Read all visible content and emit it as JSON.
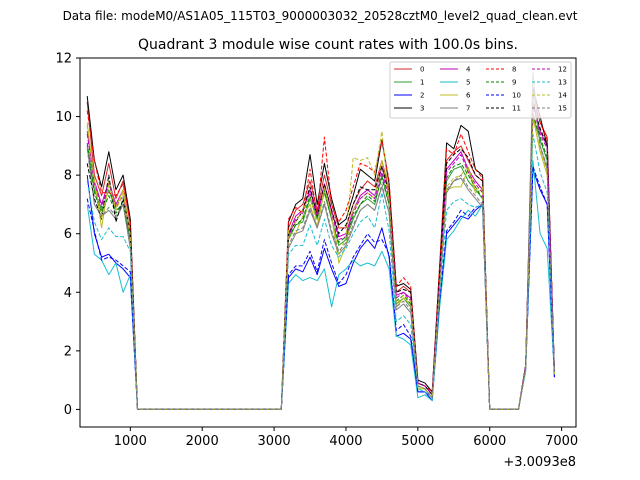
{
  "chart_data": {
    "type": "line",
    "suptitle": "Data file: modeM0/AS1A05_115T03_9000003032_20528cztM0_level2_quad_clean.evt",
    "title": "Quadrant 3 module wise count rates with 100.0s bins.",
    "xlabel": "",
    "ylabel": "",
    "x_offset_label": "+3.0093e8",
    "xlim": [
      300,
      7200
    ],
    "ylim": [
      -0.6,
      12
    ],
    "xticks": [
      1000,
      2000,
      3000,
      4000,
      5000,
      6000,
      7000
    ],
    "yticks": [
      0,
      2,
      4,
      6,
      8,
      10,
      12
    ],
    "grid": false,
    "legend_location": "top-right",
    "legend_columns": 4,
    "x": [
      400,
      500,
      600,
      700,
      800,
      900,
      1000,
      1100,
      1200,
      1300,
      1400,
      1500,
      1600,
      1700,
      1800,
      1900,
      2000,
      2100,
      2200,
      2300,
      2400,
      2500,
      2600,
      2700,
      2800,
      2900,
      3000,
      3100,
      3200,
      3300,
      3400,
      3500,
      3600,
      3700,
      3800,
      3900,
      4000,
      4100,
      4200,
      4300,
      4400,
      4500,
      4600,
      4700,
      4800,
      4900,
      5000,
      5100,
      5200,
      5300,
      5400,
      5500,
      5600,
      5700,
      5800,
      5900,
      6000,
      6100,
      6200,
      6300,
      6400,
      6500,
      6600,
      6700,
      6800,
      6900
    ],
    "series": [
      {
        "name": "0",
        "color": "#d62728",
        "dash": "solid",
        "values": [
          10.5,
          8.0,
          7.3,
          8.4,
          7.2,
          7.8,
          6.3,
          0,
          0,
          0,
          0,
          0,
          0,
          0,
          0,
          0,
          0,
          0,
          0,
          0,
          0,
          0,
          0,
          0,
          0,
          0,
          0,
          0,
          6.2,
          6.8,
          7.0,
          7.8,
          6.8,
          8.0,
          7.0,
          6.2,
          6.2,
          7.0,
          7.5,
          7.8,
          7.6,
          8.5,
          7.5,
          4.0,
          4.2,
          4.0,
          0.9,
          0.8,
          0.5,
          4.5,
          8.5,
          8.8,
          9.0,
          8.5,
          8.0,
          7.8,
          0,
          0,
          0,
          0,
          0,
          1.5,
          10.8,
          9.8,
          9.3,
          1.3
        ]
      },
      {
        "name": "1",
        "color": "#2ca02c",
        "dash": "solid",
        "values": [
          9.0,
          7.5,
          6.8,
          7.5,
          6.8,
          7.0,
          5.8,
          0,
          0,
          0,
          0,
          0,
          0,
          0,
          0,
          0,
          0,
          0,
          0,
          0,
          0,
          0,
          0,
          0,
          0,
          0,
          0,
          0,
          5.8,
          6.3,
          6.4,
          7.2,
          6.5,
          7.4,
          6.5,
          5.6,
          5.8,
          6.5,
          7.0,
          7.2,
          7.0,
          8.0,
          7.0,
          3.6,
          3.8,
          3.5,
          0.8,
          0.7,
          0.4,
          4.2,
          7.8,
          8.2,
          8.3,
          7.8,
          7.5,
          7.2,
          0,
          0,
          0,
          0,
          0,
          1.5,
          10.0,
          9.2,
          8.5,
          1.3
        ]
      },
      {
        "name": "2",
        "color": "#0000ff",
        "dash": "solid",
        "values": [
          8.0,
          6.0,
          5.2,
          5.3,
          5.0,
          4.8,
          4.5,
          0,
          0,
          0,
          0,
          0,
          0,
          0,
          0,
          0,
          0,
          0,
          0,
          0,
          0,
          0,
          0,
          0,
          0,
          0,
          0,
          0,
          4.5,
          4.8,
          4.7,
          5.2,
          4.6,
          5.5,
          4.8,
          4.2,
          4.3,
          5.0,
          5.5,
          5.8,
          5.5,
          6.2,
          5.2,
          2.5,
          2.6,
          2.4,
          0.6,
          0.6,
          0.3,
          3.5,
          6.0,
          6.3,
          6.6,
          6.5,
          6.8,
          7.0,
          0,
          0,
          0,
          0,
          0,
          1.4,
          8.2,
          7.5,
          7.0,
          1.1
        ]
      },
      {
        "name": "3",
        "color": "#000000",
        "dash": "solid",
        "values": [
          10.7,
          8.5,
          7.6,
          8.8,
          7.5,
          8.0,
          6.5,
          0,
          0,
          0,
          0,
          0,
          0,
          0,
          0,
          0,
          0,
          0,
          0,
          0,
          0,
          0,
          0,
          0,
          0,
          0,
          0,
          0,
          6.4,
          7.0,
          7.2,
          8.7,
          7.0,
          8.4,
          7.2,
          6.3,
          6.5,
          7.3,
          8.2,
          8.0,
          7.8,
          9.2,
          7.7,
          4.2,
          4.3,
          4.1,
          1.0,
          0.9,
          0.6,
          4.7,
          9.1,
          8.9,
          9.7,
          9.5,
          8.2,
          8.0,
          0,
          0,
          0,
          0,
          0,
          1.5,
          11.0,
          10.0,
          9.0,
          1.3
        ]
      },
      {
        "name": "4",
        "color": "#bf00bf",
        "dash": "solid",
        "values": [
          9.5,
          7.8,
          7.0,
          7.8,
          7.0,
          7.5,
          6.0,
          0,
          0,
          0,
          0,
          0,
          0,
          0,
          0,
          0,
          0,
          0,
          0,
          0,
          0,
          0,
          0,
          0,
          0,
          0,
          0,
          0,
          6.0,
          6.6,
          6.8,
          7.5,
          6.7,
          7.7,
          6.8,
          5.9,
          6.0,
          6.8,
          7.3,
          7.5,
          7.3,
          8.3,
          7.3,
          3.9,
          4.0,
          3.8,
          0.9,
          0.8,
          0.5,
          4.4,
          8.2,
          8.5,
          8.8,
          8.2,
          7.8,
          7.5,
          0,
          0,
          0,
          0,
          0,
          1.5,
          10.5,
          9.5,
          9.0,
          1.3
        ]
      },
      {
        "name": "5",
        "color": "#17becf",
        "dash": "solid",
        "values": [
          7.0,
          5.3,
          5.1,
          4.6,
          5.0,
          4.0,
          4.6,
          0,
          0,
          0,
          0,
          0,
          0,
          0,
          0,
          0,
          0,
          0,
          0,
          0,
          0,
          0,
          0,
          0,
          0,
          0,
          0,
          0,
          4.3,
          4.6,
          4.4,
          4.5,
          4.4,
          4.8,
          3.5,
          4.6,
          4.8,
          5.1,
          4.9,
          5.0,
          4.9,
          5.4,
          4.8,
          2.5,
          2.4,
          2.2,
          0.4,
          0.5,
          0.3,
          3.4,
          5.8,
          6.1,
          6.5,
          6.8,
          6.6,
          7.0,
          0,
          0,
          0,
          0,
          0,
          1.3,
          8.5,
          6.0,
          5.5,
          1.2
        ]
      },
      {
        "name": "6",
        "color": "#bcbd22",
        "dash": "solid",
        "values": [
          9.8,
          7.8,
          6.2,
          7.8,
          6.9,
          7.5,
          6.0,
          0,
          0,
          0,
          0,
          0,
          0,
          0,
          0,
          0,
          0,
          0,
          0,
          0,
          0,
          0,
          0,
          0,
          0,
          0,
          0,
          0,
          6.0,
          6.0,
          6.6,
          7.0,
          6.2,
          7.5,
          6.6,
          5.0,
          5.6,
          6.8,
          7.2,
          7.4,
          7.2,
          8.5,
          7.2,
          3.5,
          3.8,
          3.6,
          0.7,
          0.7,
          0.4,
          4.0,
          7.5,
          7.6,
          7.6,
          8.2,
          7.4,
          7.5,
          0,
          0,
          0,
          0,
          0,
          1.4,
          10.0,
          8.8,
          8.0,
          1.2
        ]
      },
      {
        "name": "7",
        "color": "#7f7f7f",
        "dash": "solid",
        "values": [
          9.0,
          7.0,
          6.6,
          6.8,
          6.5,
          7.0,
          5.5,
          0,
          0,
          0,
          0,
          0,
          0,
          0,
          0,
          0,
          0,
          0,
          0,
          0,
          0,
          0,
          0,
          0,
          0,
          0,
          0,
          0,
          5.5,
          6.0,
          6.1,
          6.8,
          6.2,
          7.0,
          6.0,
          5.3,
          5.6,
          6.2,
          6.8,
          7.0,
          6.8,
          7.6,
          6.7,
          3.4,
          3.6,
          3.3,
          0.8,
          0.7,
          0.4,
          4.0,
          7.4,
          7.8,
          7.9,
          7.5,
          7.2,
          6.9,
          0,
          0,
          0,
          0,
          0,
          1.4,
          11.5,
          9.0,
          8.2,
          1.3
        ]
      },
      {
        "name": "8",
        "color": "#ff0000",
        "dash": "dashed",
        "values": [
          10.2,
          8.5,
          7.4,
          7.4,
          7.3,
          7.7,
          6.4,
          0,
          0,
          0,
          0,
          0,
          0,
          0,
          0,
          0,
          0,
          0,
          0,
          0,
          0,
          0,
          0,
          0,
          0,
          0,
          0,
          0,
          6.5,
          6.9,
          6.7,
          8.2,
          6.6,
          9.3,
          7.0,
          6.4,
          6.8,
          7.6,
          8.4,
          8.3,
          8.1,
          9.2,
          7.8,
          4.2,
          4.5,
          4.2,
          0.9,
          0.8,
          0.6,
          4.8,
          8.9,
          8.7,
          9.4,
          8.8,
          8.2,
          7.9,
          0,
          0,
          0,
          0,
          0,
          1.5,
          10.5,
          9.8,
          9.2,
          1.3
        ]
      },
      {
        "name": "9",
        "color": "#008000",
        "dash": "dashed",
        "values": [
          9.1,
          7.4,
          6.7,
          7.3,
          6.7,
          7.1,
          5.8,
          0,
          0,
          0,
          0,
          0,
          0,
          0,
          0,
          0,
          0,
          0,
          0,
          0,
          0,
          0,
          0,
          0,
          0,
          0,
          0,
          0,
          5.9,
          6.3,
          6.5,
          7.3,
          6.6,
          7.5,
          6.5,
          5.7,
          5.9,
          6.6,
          7.0,
          7.3,
          7.1,
          7.9,
          7.0,
          3.7,
          3.9,
          3.6,
          0.8,
          0.7,
          0.4,
          4.3,
          7.9,
          8.3,
          8.4,
          8.0,
          7.6,
          7.2,
          0,
          0,
          0,
          0,
          0,
          1.5,
          10.1,
          9.3,
          8.6,
          1.3
        ]
      },
      {
        "name": "10",
        "color": "#0000ff",
        "dash": "dashed",
        "values": [
          7.2,
          6.1,
          5.1,
          5.2,
          5.1,
          4.9,
          4.7,
          0,
          0,
          0,
          0,
          0,
          0,
          0,
          0,
          0,
          0,
          0,
          0,
          0,
          0,
          0,
          0,
          0,
          0,
          0,
          0,
          0,
          4.6,
          4.9,
          4.9,
          5.4,
          4.7,
          5.8,
          5.0,
          4.3,
          4.6,
          5.2,
          5.6,
          6.0,
          5.7,
          5.8,
          5.3,
          2.7,
          2.9,
          2.5,
          0.6,
          0.6,
          0.4,
          3.6,
          6.1,
          6.4,
          6.8,
          6.6,
          6.9,
          7.0,
          0,
          0,
          0,
          0,
          0,
          1.4,
          8.3,
          7.6,
          7.0,
          1.1
        ]
      },
      {
        "name": "11",
        "color": "#000000",
        "dash": "dashed",
        "values": [
          8.4,
          7.2,
          6.5,
          8.0,
          6.4,
          7.2,
          6.1,
          0,
          0,
          0,
          0,
          0,
          0,
          0,
          0,
          0,
          0,
          0,
          0,
          0,
          0,
          0,
          0,
          0,
          0,
          0,
          0,
          0,
          6.0,
          6.4,
          6.8,
          7.6,
          6.6,
          7.7,
          6.8,
          6.0,
          6.3,
          7.0,
          7.6,
          7.5,
          7.5,
          8.3,
          7.4,
          4.0,
          4.1,
          4.0,
          0.9,
          0.8,
          0.5,
          4.5,
          8.4,
          8.7,
          8.9,
          8.6,
          8.0,
          7.8,
          0,
          0,
          0,
          0,
          0,
          1.5,
          10.4,
          9.6,
          9.0,
          1.3
        ]
      },
      {
        "name": "12",
        "color": "#bf00bf",
        "dash": "dashed",
        "values": [
          9.4,
          7.7,
          6.9,
          7.7,
          6.9,
          7.3,
          5.9,
          0,
          0,
          0,
          0,
          0,
          0,
          0,
          0,
          0,
          0,
          0,
          0,
          0,
          0,
          0,
          0,
          0,
          0,
          0,
          0,
          0,
          5.9,
          6.5,
          6.7,
          7.4,
          6.6,
          7.6,
          6.7,
          5.8,
          5.9,
          6.7,
          7.2,
          7.4,
          7.2,
          8.1,
          7.2,
          3.8,
          4.0,
          3.7,
          0.9,
          0.8,
          0.5,
          4.3,
          8.1,
          8.4,
          8.7,
          8.1,
          7.7,
          7.4,
          0,
          0,
          0,
          0,
          0,
          1.5,
          10.4,
          9.4,
          8.9,
          1.3
        ]
      },
      {
        "name": "13",
        "color": "#17becf",
        "dash": "dashed",
        "values": [
          7.8,
          6.4,
          5.8,
          6.2,
          5.9,
          5.9,
          5.4,
          0,
          0,
          0,
          0,
          0,
          0,
          0,
          0,
          0,
          0,
          0,
          0,
          0,
          0,
          0,
          0,
          0,
          0,
          0,
          0,
          0,
          5.3,
          5.6,
          5.6,
          6.3,
          5.6,
          6.5,
          5.6,
          5.2,
          5.5,
          6.0,
          6.4,
          6.6,
          6.2,
          7.4,
          6.1,
          3.0,
          3.2,
          2.9,
          0.7,
          0.6,
          0.4,
          3.8,
          6.8,
          7.1,
          7.2,
          7.0,
          6.9,
          7.0,
          0,
          0,
          0,
          0,
          0,
          1.4,
          9.4,
          8.1,
          7.4,
          1.2
        ]
      },
      {
        "name": "14",
        "color": "#bcbd22",
        "dash": "dashed",
        "values": [
          9.7,
          7.8,
          6.5,
          7.7,
          6.8,
          7.4,
          5.9,
          0,
          0,
          0,
          0,
          0,
          0,
          0,
          0,
          0,
          0,
          0,
          0,
          0,
          0,
          0,
          0,
          0,
          0,
          0,
          0,
          0,
          6.1,
          6.4,
          6.8,
          7.3,
          6.3,
          7.6,
          6.6,
          5.3,
          5.9,
          8.6,
          8.5,
          8.6,
          8.0,
          9.5,
          7.2,
          3.6,
          3.9,
          3.7,
          0.8,
          0.7,
          0.4,
          4.1,
          7.6,
          7.9,
          8.0,
          8.3,
          7.5,
          7.6,
          0,
          0,
          0,
          0,
          0,
          1.4,
          10.0,
          8.9,
          8.1,
          1.2
        ]
      },
      {
        "name": "15",
        "color": "#7f7f7f",
        "dash": "dashed",
        "values": [
          8.9,
          7.0,
          6.6,
          6.9,
          6.6,
          7.0,
          5.6,
          0,
          0,
          0,
          0,
          0,
          0,
          0,
          0,
          0,
          0,
          0,
          0,
          0,
          0,
          0,
          0,
          0,
          0,
          0,
          0,
          0,
          5.6,
          6.1,
          6.2,
          6.9,
          6.2,
          7.1,
          6.1,
          5.4,
          5.7,
          6.3,
          6.8,
          7.0,
          6.8,
          7.7,
          6.7,
          3.5,
          3.7,
          3.4,
          0.8,
          0.7,
          0.4,
          4.0,
          7.5,
          7.8,
          8.0,
          7.6,
          7.3,
          7.0,
          0,
          0,
          0,
          0,
          0,
          1.4,
          11.0,
          9.0,
          8.3,
          1.3
        ]
      }
    ]
  }
}
